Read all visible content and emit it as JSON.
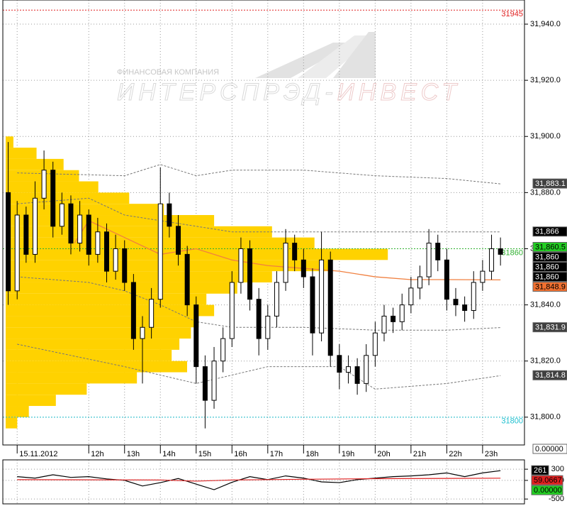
{
  "chart_data": [
    {
      "type": "candlestick",
      "watermark": {
        "company_line": "ФИНАНСОВАЯ КОМПАНИЯ",
        "name_part1": "ИНТЕРСПРЭД-",
        "name_part2": "ИНВЕСТ"
      },
      "x": [
        9.75,
        10,
        10.25,
        10.5,
        10.75,
        11,
        11.25,
        11.5,
        11.75,
        12,
        12.25,
        12.5,
        12.75,
        13,
        13.25,
        13.5,
        13.75,
        14,
        14.25,
        14.5,
        14.75,
        15,
        15.25,
        15.5,
        15.75,
        16,
        16.25,
        16.5,
        16.75,
        17,
        17.25,
        17.5,
        17.75,
        18,
        18.25,
        18.5,
        18.75,
        19,
        19.25,
        19.5,
        19.75,
        20,
        20.25,
        20.5,
        20.75,
        21,
        21.25,
        21.5,
        21.75,
        22,
        22.25,
        22.5,
        22.75,
        23,
        23.25,
        23.5
      ],
      "open": [
        31880,
        31845,
        31872,
        31858,
        31878,
        31888,
        31868,
        31876,
        31862,
        31872,
        31858,
        31866,
        31852,
        31860,
        31848,
        31828,
        31832,
        31842,
        31876,
        31868,
        31858,
        31840,
        31818,
        31806,
        31820,
        31828,
        31848,
        31860,
        31842,
        31828,
        31836,
        31848,
        31862,
        31856,
        31850,
        31830,
        31856,
        31822,
        31816,
        31818,
        31812,
        31822,
        31830,
        31836,
        31834,
        31840,
        31846,
        31850,
        31862,
        31856,
        31842,
        31840,
        31838,
        31848,
        31852,
        31860
      ],
      "high": [
        31898,
        31877,
        31875,
        31884,
        31895,
        31891,
        31880,
        31879,
        31877,
        31874,
        31871,
        31869,
        31865,
        31863,
        31851,
        31836,
        31846,
        31889,
        31880,
        31872,
        31861,
        31843,
        31822,
        31825,
        31832,
        31852,
        31864,
        31863,
        31846,
        31840,
        31852,
        31867,
        31865,
        31860,
        31853,
        31866,
        31859,
        31826,
        31822,
        31821,
        31826,
        31834,
        31840,
        31839,
        31844,
        31850,
        31854,
        31867,
        31865,
        31860,
        31846,
        31843,
        31852,
        31856,
        31865,
        31864
      ],
      "low": [
        31840,
        31842,
        31855,
        31855,
        31874,
        31864,
        31865,
        31858,
        31859,
        31854,
        31855,
        31848,
        31849,
        31845,
        31824,
        31812,
        31828,
        31839,
        31864,
        31854,
        31836,
        31812,
        31796,
        31803,
        31816,
        31825,
        31844,
        31838,
        31822,
        31824,
        31832,
        31845,
        31852,
        31846,
        31822,
        31827,
        31818,
        31810,
        31812,
        31808,
        31809,
        31818,
        31827,
        31830,
        31831,
        31837,
        31842,
        31847,
        31852,
        31838,
        31836,
        31834,
        31835,
        31845,
        31849,
        31854
      ],
      "close": [
        31845,
        31872,
        31858,
        31878,
        31888,
        31868,
        31876,
        31862,
        31872,
        31858,
        31866,
        31852,
        31860,
        31848,
        31828,
        31832,
        31842,
        31876,
        31868,
        31858,
        31840,
        31818,
        31806,
        31820,
        31828,
        31848,
        31860,
        31842,
        31828,
        31836,
        31848,
        31862,
        31856,
        31850,
        31830,
        31856,
        31822,
        31816,
        31818,
        31812,
        31822,
        31830,
        31836,
        31834,
        31840,
        31846,
        31850,
        31862,
        31856,
        31842,
        31840,
        31838,
        31848,
        31852,
        31860,
        31858
      ],
      "up_color": "#ffffff",
      "down_color": "#000000",
      "xlim": [
        9.6,
        24.17
      ],
      "xticks": [
        {
          "value": 10,
          "label": "15.11.2012"
        },
        {
          "value": 12,
          "label": "12h"
        },
        {
          "value": 13,
          "label": "13h"
        },
        {
          "value": 14,
          "label": "14h"
        },
        {
          "value": 15,
          "label": "15h"
        },
        {
          "value": 16,
          "label": "16h"
        },
        {
          "value": 17,
          "label": "17h"
        },
        {
          "value": 18,
          "label": "18h"
        },
        {
          "value": 19,
          "label": "19h"
        },
        {
          "value": 20,
          "label": "20h"
        },
        {
          "value": 21,
          "label": "21h"
        },
        {
          "value": 22,
          "label": "22h"
        },
        {
          "value": 23,
          "label": "23h"
        }
      ],
      "ylim": [
        31790.1,
        31948.6
      ],
      "yticks": [
        {
          "value": 31940,
          "label": "31,940.0"
        },
        {
          "value": 31920,
          "label": "31,920.0"
        },
        {
          "value": 31900,
          "label": "31,900.0"
        },
        {
          "value": 31880,
          "label": "31,880.0"
        },
        {
          "value": 31860,
          "label": "31,860.0"
        },
        {
          "value": 31840,
          "label": "31,840.0"
        },
        {
          "value": 31820,
          "label": "31,820.0"
        },
        {
          "value": 31800,
          "label": "31,800.0"
        }
      ],
      "grid": true,
      "profile": {
        "color": "#ffd200",
        "vlim": [
          0,
          100
        ],
        "width_share": 0.74,
        "prices": [
          31898,
          31894,
          31890,
          31886,
          31882,
          31878,
          31874,
          31870,
          31866,
          31862,
          31858,
          31854,
          31850,
          31846,
          31842,
          31838,
          31834,
          31830,
          31826,
          31822,
          31818,
          31814,
          31810,
          31806,
          31802,
          31798
        ],
        "volumes": [
          2,
          8,
          15,
          19,
          24,
          32,
          41,
          54,
          69,
          80,
          99,
          84,
          69,
          60,
          52,
          54,
          50,
          48,
          45,
          43,
          47,
          34,
          21,
          13,
          6,
          3
        ]
      },
      "overlays": [
        {
          "color": "#f08040",
          "dashed": false,
          "x": [
            11.6,
            12,
            13,
            14,
            15,
            16,
            17,
            18,
            19,
            20,
            21,
            22,
            23.5
          ],
          "values": [
            31862,
            31870,
            31864,
            31858,
            31860,
            31856,
            31854,
            31853,
            31852,
            31850,
            31849,
            31849,
            31848.9
          ]
        },
        {
          "color": "#777777",
          "dashed": true,
          "x": [
            10,
            12,
            13,
            14,
            15,
            16,
            17,
            18,
            20,
            22,
            23.5
          ],
          "values": [
            31876,
            31878,
            31872,
            31870,
            31868,
            31866,
            31866,
            31866,
            31866,
            31866,
            31866
          ]
        },
        {
          "color": "#777777",
          "dashed": true,
          "x": [
            10,
            13,
            14,
            15,
            16,
            18,
            20,
            22,
            23.5
          ],
          "values": [
            31887,
            31886,
            31890,
            31886,
            31888,
            31888,
            31886,
            31885,
            31883.1
          ]
        },
        {
          "color": "#777777",
          "dashed": true,
          "x": [
            10,
            12,
            13,
            14,
            15,
            16,
            17,
            18,
            20,
            22,
            23.5
          ],
          "values": [
            31850,
            31848,
            31845,
            31840,
            31834,
            31832,
            31832,
            31832,
            31831,
            31831,
            31831.9
          ]
        },
        {
          "color": "#777777",
          "dashed": true,
          "x": [
            10,
            13,
            15,
            17,
            18,
            19,
            20,
            22,
            23.5
          ],
          "values": [
            31826,
            31818,
            31812,
            31818,
            31818,
            31818,
            31810,
            31812,
            31814.8
          ]
        }
      ],
      "levels": [
        {
          "value": 31945,
          "color": "#e02020"
        },
        {
          "value": 31860,
          "color": "#30b030"
        },
        {
          "value": 31800,
          "color": "#20c0d0"
        }
      ],
      "price_tags": [
        {
          "value": 31883.1,
          "label": "31,883.1",
          "bg": "#404040",
          "fg": "#ffffff"
        },
        {
          "value": 31866,
          "label": "31,866",
          "bg": "#000000",
          "fg": "#ffffff"
        },
        {
          "value": 31860.5,
          "label": "31,860.5",
          "bg": "#22cc22",
          "fg": "#000000"
        },
        {
          "value": 31860,
          "label": "31,860",
          "bg": "#000000",
          "fg": "#ffffff"
        },
        {
          "value": 31860,
          "label": "31,860",
          "bg": "#000000",
          "fg": "#ffffff"
        },
        {
          "value": 31860,
          "label": "31,860",
          "bg": "#000000",
          "fg": "#ffffff"
        },
        {
          "value": 31848.9,
          "label": "31,848.9",
          "bg": "#f07030",
          "fg": "#000000"
        },
        {
          "value": 31831.9,
          "label": "31,831.9",
          "bg": "#404040",
          "fg": "#ffffff"
        },
        {
          "value": 31814.8,
          "label": "31,814.8",
          "bg": "#404040",
          "fg": "#ffffff"
        }
      ],
      "footer_tag": {
        "value": 0,
        "label": "0.00000",
        "bg": "#ffffff",
        "fg": "#000000"
      }
    },
    {
      "type": "line",
      "series": [
        {
          "color": "#000000",
          "x": [
            10,
            10.5,
            11,
            11.5,
            12,
            12.5,
            13,
            13.5,
            14,
            14.5,
            15,
            15.5,
            16,
            16.5,
            17,
            17.5,
            18,
            18.5,
            19,
            19.5,
            20,
            20.5,
            21,
            21.5,
            22,
            22.5,
            23,
            23.5
          ],
          "values": [
            100,
            60,
            150,
            80,
            100,
            40,
            0,
            -150,
            -60,
            50,
            -100,
            -250,
            -50,
            100,
            20,
            120,
            60,
            -40,
            -60,
            20,
            60,
            100,
            120,
            150,
            200,
            100,
            200,
            261
          ]
        },
        {
          "color": "#e02020",
          "x": [
            10,
            14,
            15,
            16,
            18,
            20,
            23.5
          ],
          "values": [
            20,
            10,
            -20,
            10,
            30,
            45,
            59.0667
          ]
        }
      ],
      "ylim": [
        -630,
        550
      ],
      "yticks": [
        300,
        0,
        -500
      ],
      "price_tags": [
        {
          "value": 261,
          "label": "261",
          "bg": "#000000",
          "fg": "#ffffff"
        },
        {
          "value": 59.0667,
          "label": "59.0667",
          "bg": "#e02020",
          "fg": "#000000"
        },
        {
          "value": 0,
          "label": "0.00000",
          "bg": "#22cc22",
          "fg": "#000000"
        }
      ]
    }
  ]
}
